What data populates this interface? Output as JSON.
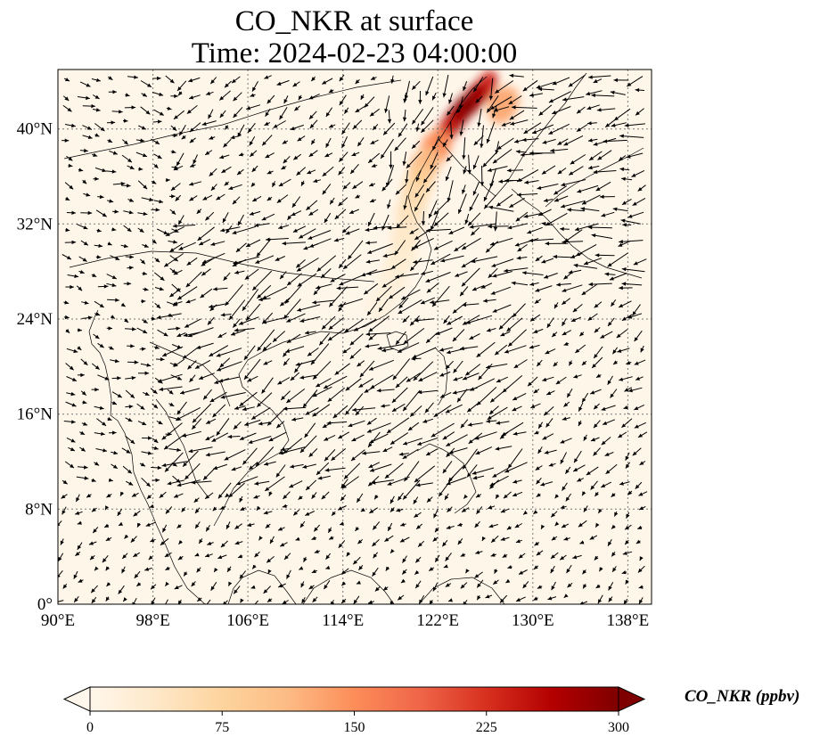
{
  "figure": {
    "title_line1": "CO_NKR at surface",
    "title_line2": "Time: 2024-02-23 04:00:00"
  },
  "map": {
    "projection": "PlateCarree",
    "lon_range": [
      90,
      140
    ],
    "lat_range": [
      0,
      45
    ],
    "gridlines": "dotted",
    "background_color": "#fff6ea",
    "lon_ticks": [
      {
        "value": 90,
        "label": "90°E"
      },
      {
        "value": 98,
        "label": "98°E"
      },
      {
        "value": 106,
        "label": "106°E"
      },
      {
        "value": 114,
        "label": "114°E"
      },
      {
        "value": 122,
        "label": "122°E"
      },
      {
        "value": 130,
        "label": "130°E"
      },
      {
        "value": 138,
        "label": "138°E"
      }
    ],
    "lat_ticks": [
      {
        "value": 0,
        "label": "0°"
      },
      {
        "value": 8,
        "label": "8°N"
      },
      {
        "value": 16,
        "label": "16°N"
      },
      {
        "value": 24,
        "label": "24°N"
      },
      {
        "value": 32,
        "label": "32°N"
      },
      {
        "value": 40,
        "label": "40°N"
      }
    ],
    "plume": [
      {
        "lon": 126.0,
        "lat": 43.5,
        "value": 240
      },
      {
        "lon": 125.0,
        "lat": 42.5,
        "value": 280
      },
      {
        "lon": 124.0,
        "lat": 41.5,
        "value": 300
      },
      {
        "lon": 123.3,
        "lat": 40.6,
        "value": 280
      },
      {
        "lon": 122.6,
        "lat": 39.6,
        "value": 240
      },
      {
        "lon": 127.5,
        "lat": 42.0,
        "value": 130
      },
      {
        "lon": 121.8,
        "lat": 38.4,
        "value": 150
      },
      {
        "lon": 120.9,
        "lat": 36.9,
        "value": 110
      },
      {
        "lon": 120.3,
        "lat": 35.2,
        "value": 80
      },
      {
        "lon": 119.8,
        "lat": 33.4,
        "value": 60
      },
      {
        "lon": 119.4,
        "lat": 31.4,
        "value": 45
      },
      {
        "lon": 118.9,
        "lat": 29.2,
        "value": 35
      },
      {
        "lon": 118.2,
        "lat": 27.3,
        "value": 25
      },
      {
        "lon": 117.3,
        "lat": 25.3,
        "value": 18
      }
    ]
  },
  "colorbar": {
    "label": "CO_NKR (ppbv)",
    "cmap": [
      "#fff7ec",
      "#fee8c8",
      "#fdd49e",
      "#fdbb84",
      "#fc8d59",
      "#ef6548",
      "#d7301f",
      "#b30000",
      "#7f0000"
    ],
    "min": 0,
    "max": 300,
    "extend": "both",
    "ticks": [
      {
        "value": 0,
        "label": "0"
      },
      {
        "value": 75,
        "label": "75"
      },
      {
        "value": 150,
        "label": "150"
      },
      {
        "value": 225,
        "label": "225"
      },
      {
        "value": 300,
        "label": "300"
      }
    ]
  }
}
